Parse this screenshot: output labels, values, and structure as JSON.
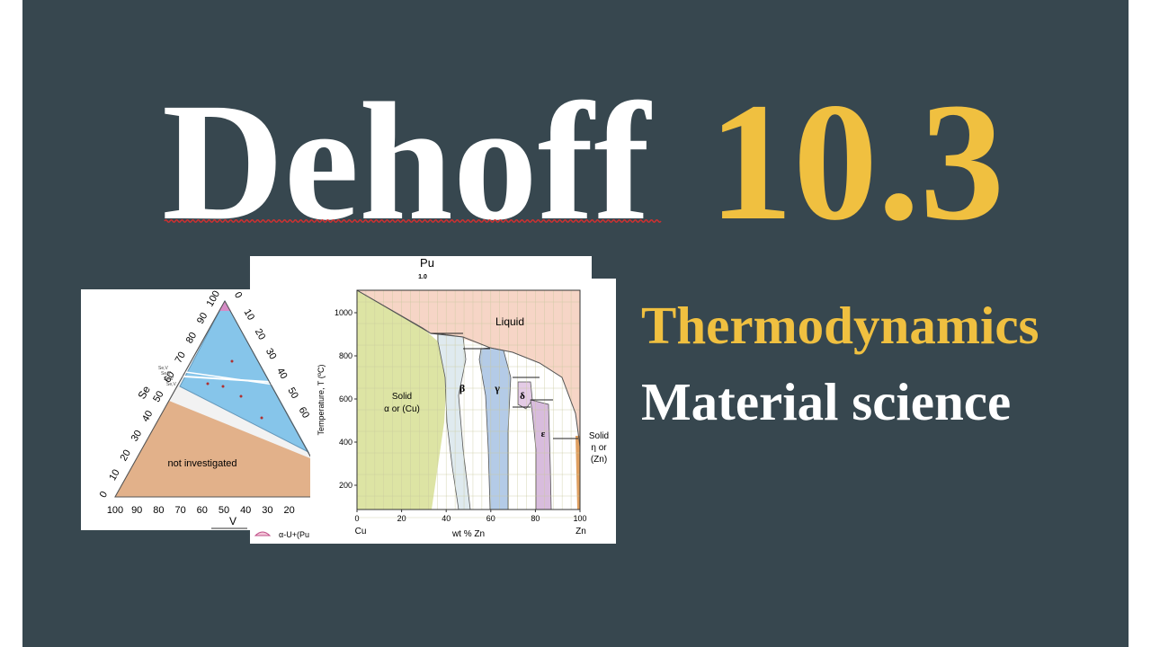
{
  "title": {
    "name": "Dehoff",
    "number": "10.3"
  },
  "subtitles": [
    "Thermodynamics",
    "Material science"
  ],
  "ternary_figure": {
    "region_label": "not investigated",
    "element_left": "Se",
    "element_bottom": "V",
    "bottom_ticks": [
      "100",
      "90",
      "80",
      "70",
      "60",
      "50",
      "40",
      "30",
      "20"
    ],
    "left_ticks": [
      "0",
      "10",
      "20",
      "30",
      "40",
      "50",
      "60",
      "70",
      "80",
      "90",
      "100"
    ],
    "right_ticks": [
      "0",
      "10",
      "20",
      "30",
      "40",
      "50",
      "60"
    ],
    "phase_labels": [
      "Se,V",
      "Se,V",
      "Se,V",
      "Se,V"
    ]
  },
  "pu_page": {
    "heading": "Pu",
    "subheading": "1.0",
    "legend": "α-U+(Pu"
  },
  "phase_diagram": {
    "y_axis_label": "Temperature, T (ºC)",
    "x_axis_label": "wt % Zn",
    "x_left_element": "Cu",
    "x_right_element": "Zn",
    "yticks": [
      200,
      400,
      600,
      800,
      1000
    ],
    "xticks": [
      0,
      20,
      40,
      60,
      80,
      100
    ],
    "liquid": "Liquid",
    "alpha": [
      "Solid",
      "α or (Cu)"
    ],
    "beta": "β",
    "gamma": "γ",
    "delta": "δ",
    "epsilon": "ε",
    "eta": [
      "Solid",
      "η or",
      "(Zn)"
    ]
  }
}
